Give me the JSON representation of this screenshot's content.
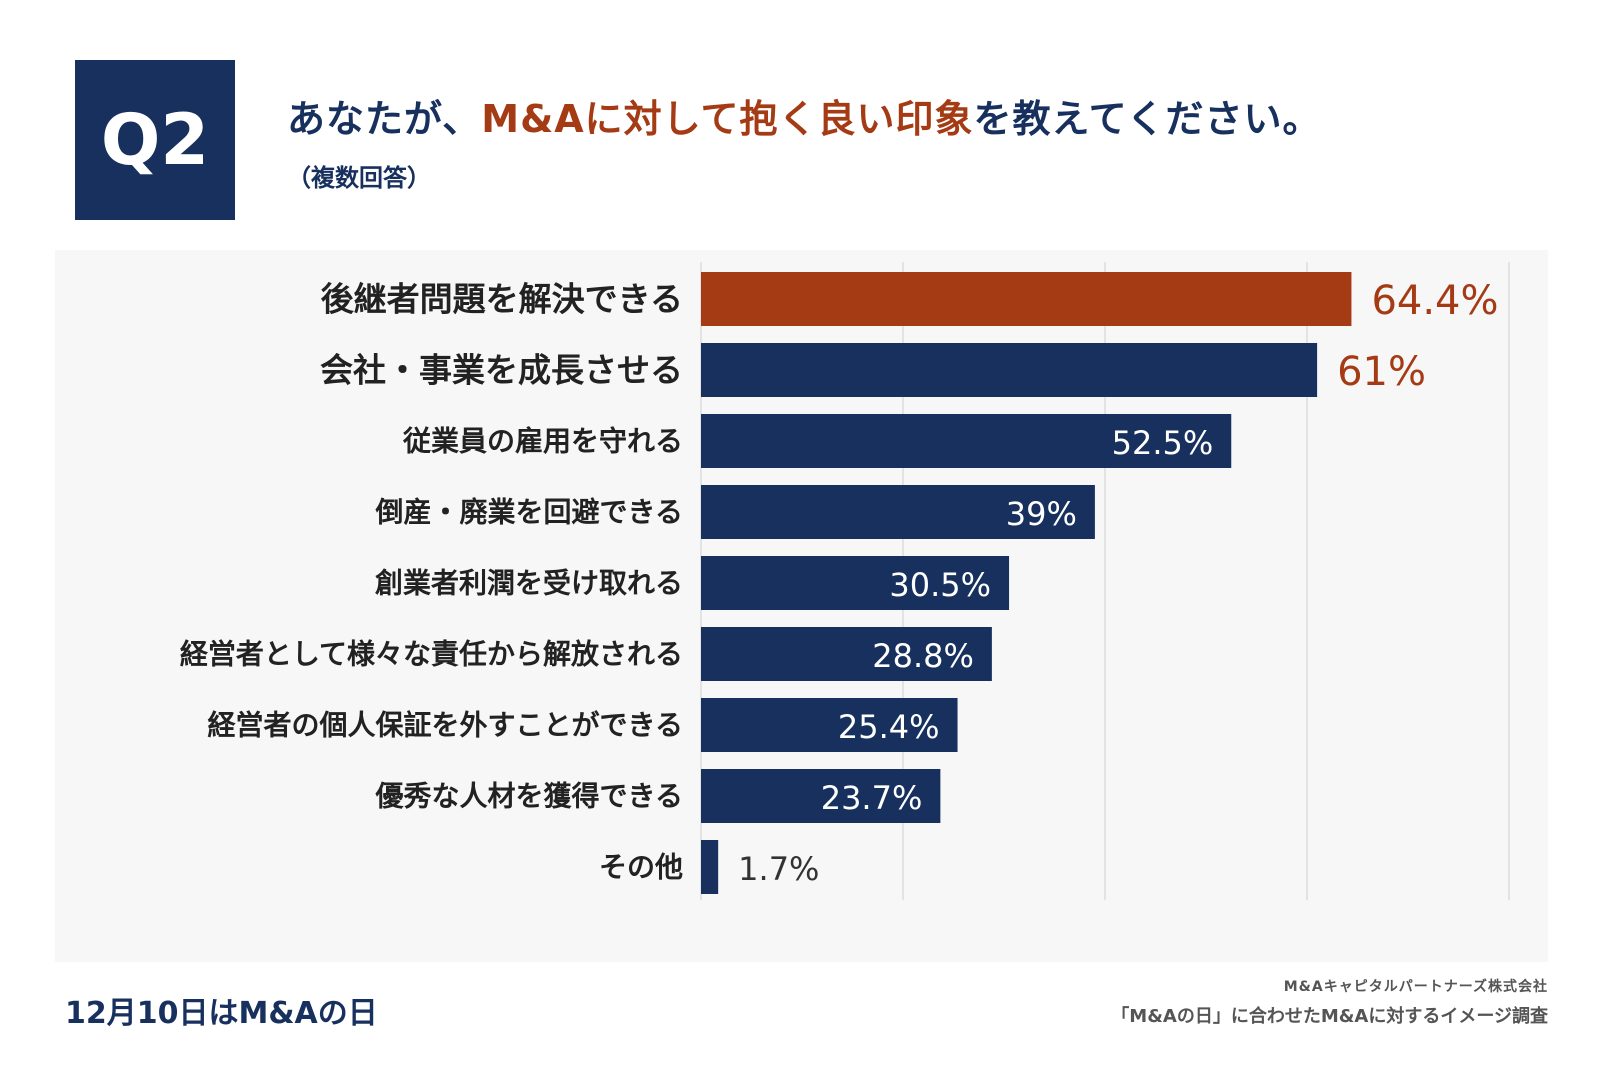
{
  "question": {
    "number": "Q2",
    "title_prefix": "あなたが、",
    "title_highlight": "M&Aに対して抱く良い印象",
    "title_suffix": "を教えてください。",
    "subtitle": "（複数回答）"
  },
  "footer": {
    "left": "12月10日はM&Aの日",
    "company": "M&Aキャピタルパートナーズ株式会社",
    "survey": "「M&Aの日」に合わせたM&Aに対するイメージ調査"
  },
  "colors": {
    "navy": "#17305e",
    "accent": "#a53b15",
    "panel": "#f7f7f7",
    "grid": "#cfcfcf"
  },
  "chart_data": {
    "type": "bar",
    "orientation": "horizontal",
    "xlim": [
      0,
      80
    ],
    "grid_step": 20,
    "categories": [
      "後継者問題を解決できる",
      "会社・事業を成長させる",
      "従業員の雇用を守れる",
      "倒産・廃業を回避できる",
      "創業者利潤を受け取れる",
      "経営者として様々な責任から解放される",
      "経営者の個人保証を外すことができる",
      "優秀な人材を獲得できる",
      "その他"
    ],
    "values": [
      64.4,
      61,
      52.5,
      39,
      30.5,
      28.8,
      25.4,
      23.7,
      1.7
    ],
    "labels": [
      "64.4%",
      "61%",
      "52.5%",
      "39%",
      "30.5%",
      "28.8%",
      "25.4%",
      "23.7%",
      "1.7%"
    ],
    "bar_colors": [
      "#a53b15",
      "#17305e",
      "#17305e",
      "#17305e",
      "#17305e",
      "#17305e",
      "#17305e",
      "#17305e",
      "#17305e"
    ],
    "label_position": [
      "outside",
      "outside",
      "inside",
      "inside",
      "inside",
      "inside",
      "inside",
      "inside",
      "outside"
    ],
    "emphasized": [
      true,
      true,
      false,
      false,
      false,
      false,
      false,
      false,
      false
    ]
  }
}
